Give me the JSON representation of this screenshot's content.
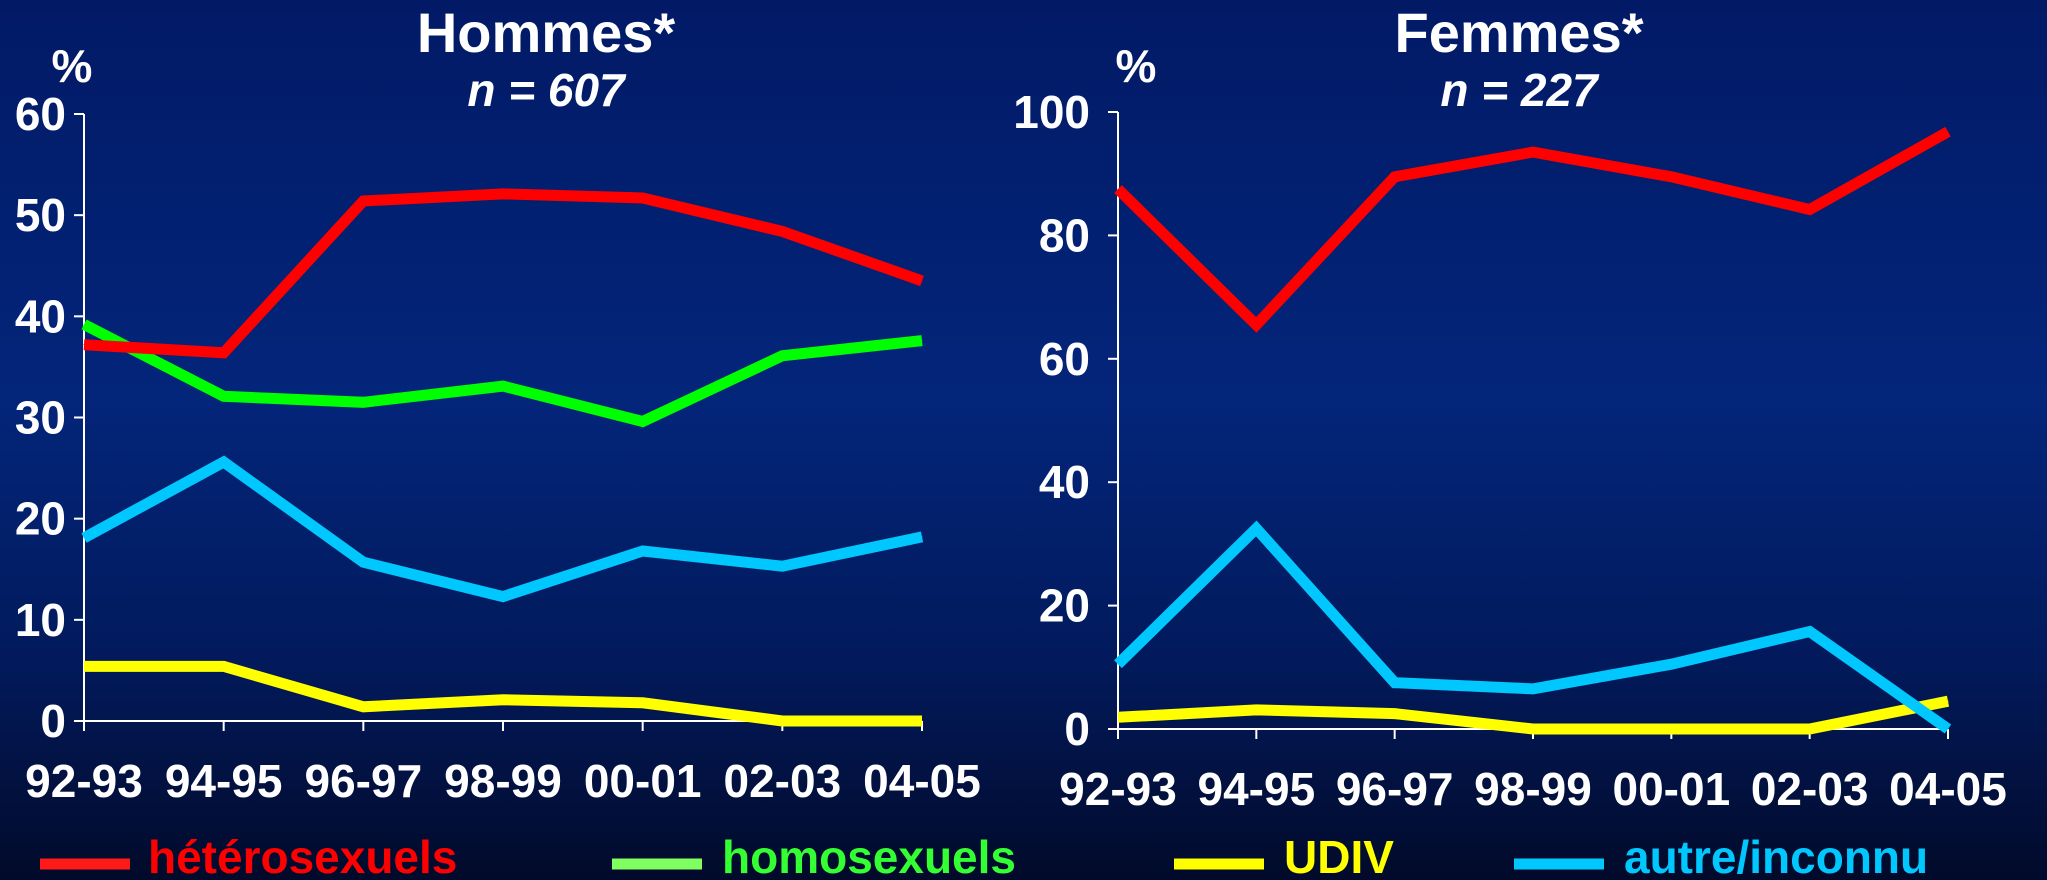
{
  "colors": {
    "background_top": "#03257a",
    "text": "#ffffff",
    "axis": "#ffffff",
    "heterosexuels": "#ff0000",
    "homosexuels": "#00ff00",
    "homosexuels_legend": "#80ff60",
    "udiv": "#ffff00",
    "autre": "#00c8ff"
  },
  "legend": [
    {
      "label": "hétérosexuels",
      "color": "#ff0000",
      "swatch": "#ff1a1a"
    },
    {
      "label": "homosexuels",
      "color": "#33ff33",
      "swatch": "#80ff60"
    },
    {
      "label": "UDIV",
      "color": "#ffff00",
      "swatch": "#ffff00"
    },
    {
      "label": "autre/inconnu",
      "color": "#00c8ff",
      "swatch": "#00c8ff"
    }
  ],
  "chart_data": [
    {
      "type": "line",
      "title": "Hommes*",
      "subtitle": "n = 607",
      "ylabel": "%",
      "xlabel": "",
      "ylim": [
        0,
        60
      ],
      "yticks": [
        0,
        10,
        20,
        30,
        40,
        50,
        60
      ],
      "categories": [
        "92-93",
        "94-95",
        "96-97",
        "98-99",
        "00-01",
        "02-03",
        "04-05"
      ],
      "series": [
        {
          "name": "hétérosexuels",
          "color": "#ff0000",
          "values": [
            37.2,
            36.4,
            51.4,
            52.1,
            51.7,
            48.4,
            43.5
          ]
        },
        {
          "name": "homosexuels",
          "color": "#00ff00",
          "values": [
            39.2,
            32.1,
            31.5,
            33.1,
            29.6,
            36.1,
            37.6
          ]
        },
        {
          "name": "UDIV",
          "color": "#ffff00",
          "values": [
            5.4,
            5.4,
            1.4,
            2.1,
            1.8,
            0,
            0
          ]
        },
        {
          "name": "autre/inconnu",
          "color": "#00c8ff",
          "values": [
            18.1,
            25.6,
            15.7,
            12.3,
            16.8,
            15.3,
            18.2
          ]
        }
      ]
    },
    {
      "type": "line",
      "title": "Femmes*",
      "subtitle": "n = 227",
      "ylabel": "%",
      "xlabel": "",
      "ylim": [
        0,
        100
      ],
      "yticks": [
        0,
        20,
        40,
        60,
        80,
        100
      ],
      "categories": [
        "92-93",
        "94-95",
        "96-97",
        "98-99",
        "00-01",
        "02-03",
        "04-05"
      ],
      "series": [
        {
          "name": "hétérosexuels",
          "color": "#ff0000",
          "values": [
            87.5,
            65.5,
            89.5,
            93.5,
            89.5,
            84.2,
            96.8
          ]
        },
        {
          "name": "UDIV",
          "color": "#ffff00",
          "values": [
            1.9,
            3.1,
            2.5,
            0,
            0,
            0,
            4.5
          ]
        },
        {
          "name": "autre/inconnu",
          "color": "#00c8ff",
          "values": [
            10.5,
            32.5,
            7.5,
            6.5,
            10.5,
            15.8,
            0
          ]
        }
      ]
    }
  ]
}
